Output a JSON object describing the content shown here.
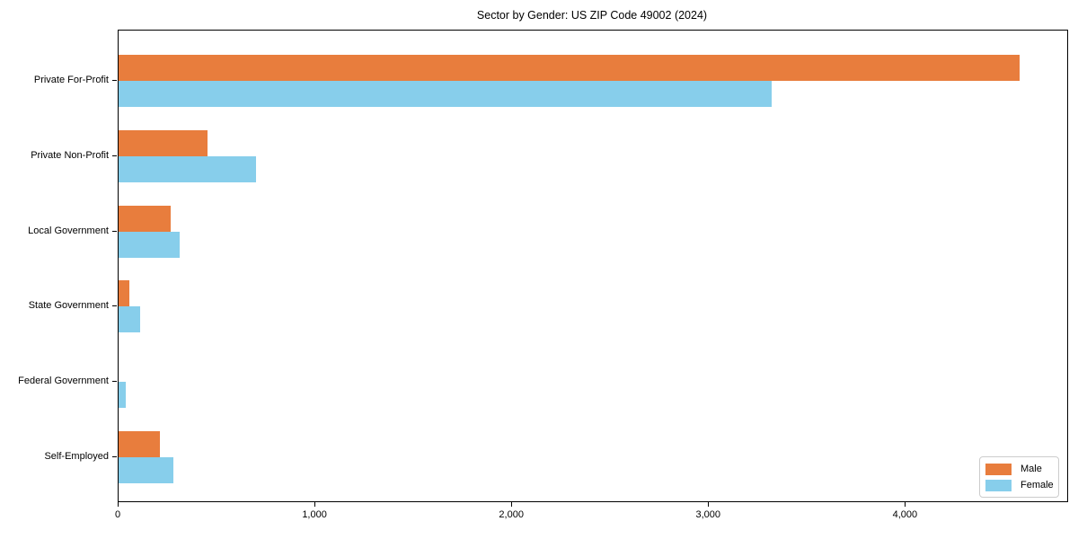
{
  "chart_data": {
    "type": "bar",
    "orientation": "horizontal",
    "title": "Sector by Gender: US ZIP Code 49002 (2024)",
    "categories": [
      "Private For-Profit",
      "Private Non-Profit",
      "Local Government",
      "State Government",
      "Federal Government",
      "Self-Employed"
    ],
    "series": [
      {
        "name": "Male",
        "color": "#e87d3d",
        "values": [
          4580,
          450,
          265,
          55,
          0,
          210
        ]
      },
      {
        "name": "Female",
        "color": "#87ceeb",
        "values": [
          3320,
          700,
          310,
          110,
          38,
          280
        ]
      }
    ],
    "xlabel": "",
    "ylabel": "",
    "xlim": [
      0,
      4820
    ],
    "x_ticks": [
      0,
      1000,
      2000,
      3000,
      4000
    ],
    "x_tick_labels": [
      "0",
      "1,000",
      "2,000",
      "3,000",
      "4,000"
    ],
    "grid": false,
    "legend_position": "lower right"
  },
  "colors": {
    "male": "#e87d3d",
    "female": "#87ceeb",
    "spine": "#000000",
    "text": "#000000",
    "legend_border": "#cccccc",
    "background": "#ffffff"
  }
}
